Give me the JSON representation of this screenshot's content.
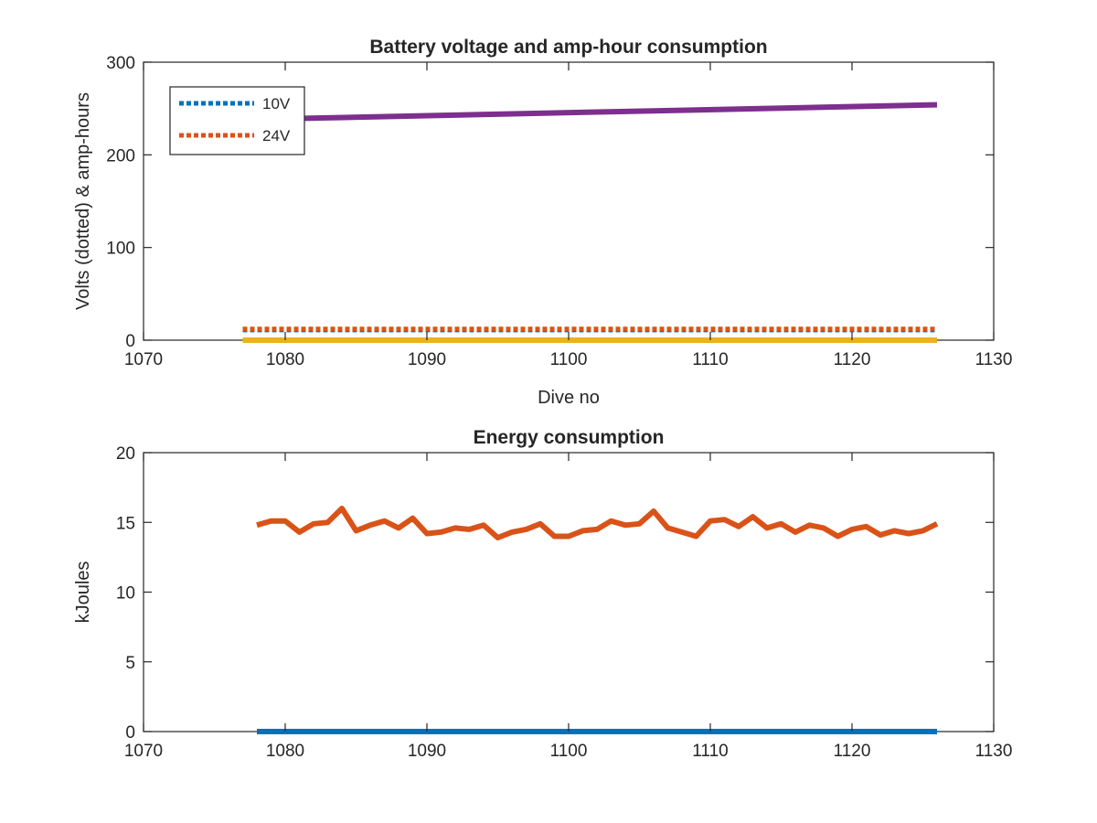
{
  "chart_data": [
    {
      "type": "line",
      "title": "Battery voltage and amp-hour consumption",
      "xlabel": "Dive no",
      "ylabel": "Volts (dotted) & amp-hours",
      "xlim": [
        1070,
        1130
      ],
      "ylim": [
        0,
        300
      ],
      "xticks": [
        1070,
        1080,
        1090,
        1100,
        1110,
        1120,
        1130
      ],
      "yticks": [
        0,
        100,
        200,
        300
      ],
      "grid": false,
      "legend": {
        "placement": "top-left"
      },
      "series": [
        {
          "name": "10V",
          "style": "dotted",
          "color": "#0072BD",
          "x": [
            1077,
            1126
          ],
          "values": [
            11,
            11
          ]
        },
        {
          "name": "24V",
          "style": "dotted",
          "color": "#D95319",
          "x": [
            1077,
            1126
          ],
          "values": [
            12,
            12
          ]
        },
        {
          "style": "solid",
          "color": "#EDB120",
          "x": [
            1077,
            1126
          ],
          "values": [
            0,
            0
          ]
        },
        {
          "style": "solid",
          "color": "#7E2F8E",
          "x": [
            1077,
            1126
          ],
          "values": [
            238,
            254
          ]
        }
      ]
    },
    {
      "type": "line",
      "title": "Energy consumption",
      "xlabel": "",
      "ylabel": "kJoules",
      "xlim": [
        1070,
        1130
      ],
      "ylim": [
        0,
        20
      ],
      "xticks": [
        1070,
        1080,
        1090,
        1100,
        1110,
        1120,
        1130
      ],
      "yticks": [
        0,
        5,
        10,
        15,
        20
      ],
      "grid": false,
      "series": [
        {
          "style": "solid",
          "color": "#0072BD",
          "x": [
            1078,
            1126
          ],
          "values": [
            0,
            0
          ]
        },
        {
          "style": "solid",
          "color": "#D95319",
          "x": [
            1078,
            1079,
            1080,
            1081,
            1082,
            1083,
            1084,
            1085,
            1086,
            1087,
            1088,
            1089,
            1090,
            1091,
            1092,
            1093,
            1094,
            1095,
            1096,
            1097,
            1098,
            1099,
            1100,
            1101,
            1102,
            1103,
            1104,
            1105,
            1106,
            1107,
            1108,
            1109,
            1110,
            1111,
            1112,
            1113,
            1114,
            1115,
            1116,
            1117,
            1118,
            1119,
            1120,
            1121,
            1122,
            1123,
            1124,
            1125,
            1126
          ],
          "values": [
            14.8,
            15.1,
            15.1,
            14.3,
            14.9,
            15.0,
            16.0,
            14.4,
            14.8,
            15.1,
            14.6,
            15.3,
            14.2,
            14.3,
            14.6,
            14.5,
            14.8,
            13.9,
            14.3,
            14.5,
            14.9,
            14.0,
            14.0,
            14.4,
            14.5,
            15.1,
            14.8,
            14.9,
            15.8,
            14.6,
            14.3,
            14.0,
            15.1,
            15.2,
            14.7,
            15.4,
            14.6,
            14.9,
            14.3,
            14.8,
            14.6,
            14.0,
            14.5,
            14.7,
            14.1,
            14.4,
            14.2,
            14.4,
            14.9
          ]
        }
      ]
    }
  ]
}
